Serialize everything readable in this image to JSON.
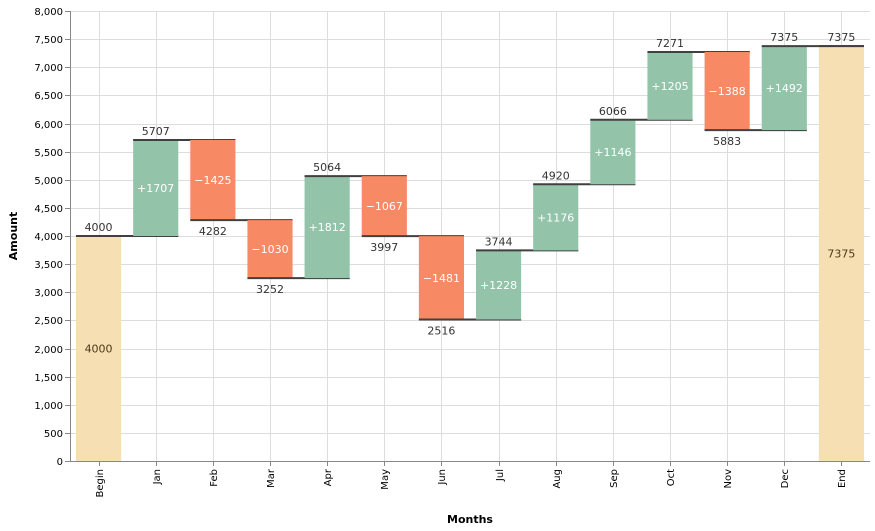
{
  "chart_data": {
    "type": "bar",
    "subtype": "waterfall",
    "xlabel": "Months",
    "ylabel": "Amount",
    "ylim": [
      0,
      8000
    ],
    "yticks": [
      0,
      500,
      1000,
      1500,
      2000,
      2500,
      3000,
      3500,
      4000,
      4500,
      5000,
      5500,
      6000,
      6500,
      7000,
      7500,
      8000
    ],
    "ytick_labels": [
      "0",
      "500",
      "1,000",
      "1,500",
      "2,000",
      "2,500",
      "3,000",
      "3,500",
      "4,000",
      "4,500",
      "5,000",
      "5,500",
      "6,000",
      "6,500",
      "7,000",
      "7,500",
      "8,000"
    ],
    "grid": true,
    "categories": [
      "Begin",
      "Jan",
      "Feb",
      "Mar",
      "Apr",
      "May",
      "Jun",
      "Jul",
      "Aug",
      "Sep",
      "Oct",
      "Nov",
      "Dec",
      "End"
    ],
    "bars": [
      {
        "label": "Begin",
        "kind": "total",
        "start": 0,
        "end": 4000,
        "inner_label": "4000",
        "end_label": "4000"
      },
      {
        "label": "Jan",
        "kind": "increase",
        "start": 4000,
        "end": 5707,
        "inner_label": "+1707",
        "end_label": "5707"
      },
      {
        "label": "Feb",
        "kind": "decrease",
        "start": 5707,
        "end": 4282,
        "inner_label": "−1425",
        "end_label": "4282"
      },
      {
        "label": "Mar",
        "kind": "decrease",
        "start": 4282,
        "end": 3252,
        "inner_label": "−1030",
        "end_label": "3252"
      },
      {
        "label": "Apr",
        "kind": "increase",
        "start": 3252,
        "end": 5064,
        "inner_label": "+1812",
        "end_label": "5064"
      },
      {
        "label": "May",
        "kind": "decrease",
        "start": 5064,
        "end": 3997,
        "inner_label": "−1067",
        "end_label": "3997"
      },
      {
        "label": "Jun",
        "kind": "decrease",
        "start": 3997,
        "end": 2516,
        "inner_label": "−1481",
        "end_label": "2516"
      },
      {
        "label": "Jul",
        "kind": "increase",
        "start": 2516,
        "end": 3744,
        "inner_label": "+1228",
        "end_label": "3744"
      },
      {
        "label": "Aug",
        "kind": "increase",
        "start": 3744,
        "end": 4920,
        "inner_label": "+1176",
        "end_label": "4920"
      },
      {
        "label": "Sep",
        "kind": "increase",
        "start": 4920,
        "end": 6066,
        "inner_label": "+1146",
        "end_label": "6066"
      },
      {
        "label": "Oct",
        "kind": "increase",
        "start": 6066,
        "end": 7271,
        "inner_label": "+1205",
        "end_label": "7271"
      },
      {
        "label": "Nov",
        "kind": "decrease",
        "start": 7271,
        "end": 5883,
        "inner_label": "−1388",
        "end_label": "5883"
      },
      {
        "label": "Dec",
        "kind": "increase",
        "start": 5883,
        "end": 7375,
        "inner_label": "+1492",
        "end_label": "7375"
      },
      {
        "label": "End",
        "kind": "total",
        "start": 0,
        "end": 7375,
        "inner_label": "7375",
        "end_label": "7375"
      }
    ],
    "colors": {
      "total": "#f7dfb4",
      "increase": "#93c4aa",
      "decrease": "#f78a64",
      "total_text": "#4a3a1a",
      "change_text": "#ffffff",
      "level_line": "#404040"
    }
  }
}
